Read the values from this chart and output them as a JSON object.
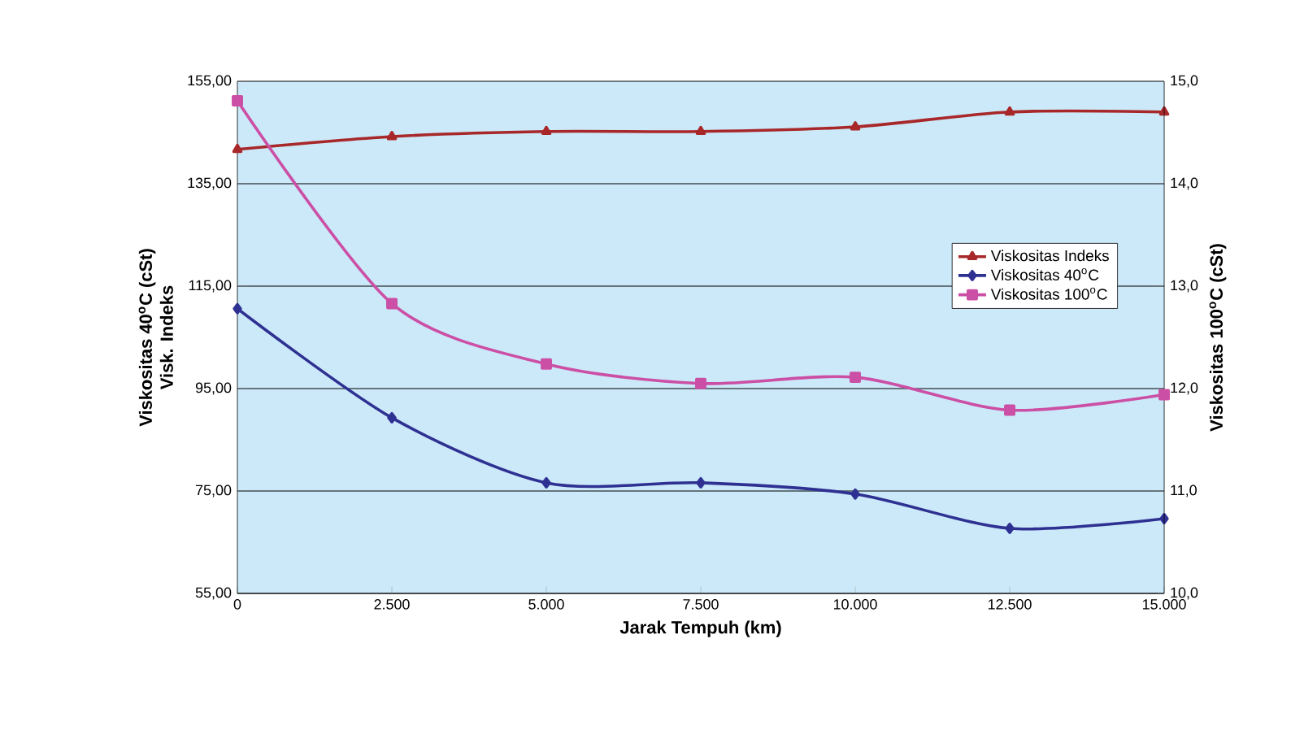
{
  "chart_data": {
    "type": "line",
    "xlabel": "Jarak Tempuh (km)",
    "ylabel": "Viskositas 40$^{o}$C (cSt)",
    "y2label": "Viskositas 100$^{o}$C (cSt)",
    "annotations": [
      "Visk. Indeks"
    ],
    "x": [
      0,
      2500,
      5000,
      7500,
      10000,
      12500,
      15000
    ],
    "xlim": [
      0,
      15000
    ],
    "xticks": [
      0,
      {
        "value": 2500,
        "label": "2.500"
      },
      {
        "value": 5000,
        "label": "5.000"
      },
      {
        "value": 7500,
        "label": "7.500"
      },
      {
        "value": 10000,
        "label": "10.000"
      },
      {
        "value": 12500,
        "label": "12.500"
      },
      {
        "value": 15000,
        "label": "15.000"
      }
    ],
    "ylim": [
      55,
      155
    ],
    "yticks": [
      {
        "value": 55,
        "label": "55,00"
      },
      {
        "value": 75,
        "label": "75,00"
      },
      {
        "value": 95,
        "label": "95,00"
      },
      {
        "value": 115,
        "label": "115,00"
      },
      {
        "value": 135,
        "label": "135,00"
      },
      {
        "value": 155,
        "label": "155,00"
      }
    ],
    "y2lim": [
      10,
      15
    ],
    "y2ticks": [
      {
        "value": 10,
        "label": "10,0"
      },
      {
        "value": 11,
        "label": "11,0"
      },
      {
        "value": 12,
        "label": "12,0"
      },
      {
        "value": 13,
        "label": "13,0"
      },
      {
        "value": 14,
        "label": "14,0"
      },
      {
        "value": 15,
        "label": "15,0"
      }
    ],
    "grid": "y",
    "legend": "right",
    "line_style": "solid",
    "series": [
      {
        "name": "Viskositas Indeks",
        "color": "#a8282a",
        "marker": "triangle",
        "values": [
          141.7,
          144.2,
          145.2,
          145.2,
          146.1,
          149.0,
          149.0
        ]
      },
      {
        "name": "Viskositas 40$^{o}$C",
        "color": "#2e3192",
        "marker": "diamond",
        "values": [
          110.6,
          89.3,
          76.6,
          76.6,
          74.4,
          67.7,
          69.6
        ]
      },
      {
        "name": "Viskositas 100$^{o}$C",
        "color": "#cc4fa6",
        "marker": "square",
        "axis": "y2",
        "values": [
          14.81,
          12.83,
          12.24,
          12.05,
          12.11,
          11.79,
          11.94
        ]
      }
    ]
  }
}
